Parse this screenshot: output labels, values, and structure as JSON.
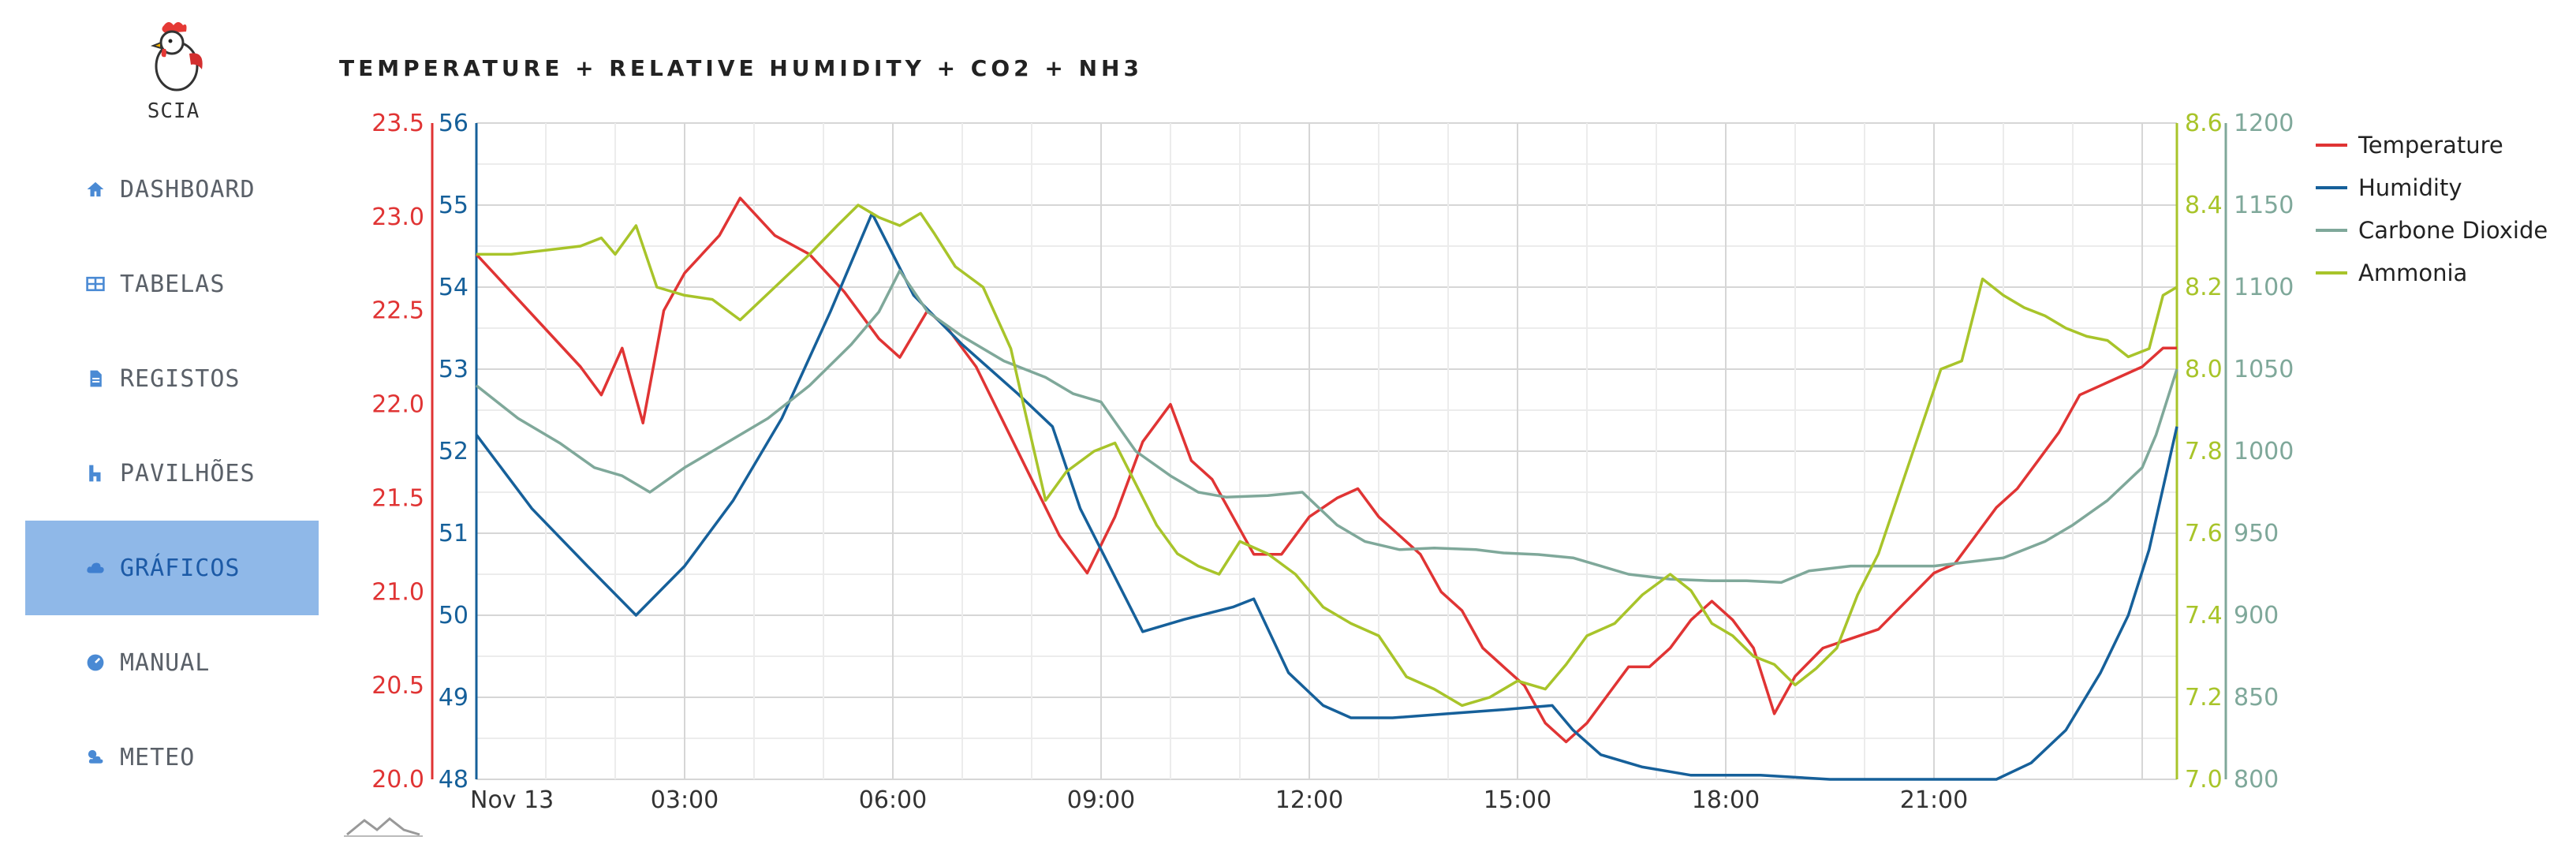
{
  "app": {
    "logo_text": "SCIA"
  },
  "sidebar": {
    "items": [
      {
        "label": "DASHBOARD",
        "icon": "home-icon",
        "active": false
      },
      {
        "label": "TABELAS",
        "icon": "table-icon",
        "active": false
      },
      {
        "label": "REGISTOS",
        "icon": "file-icon",
        "active": false
      },
      {
        "label": "PAVILHÕES",
        "icon": "barn-icon",
        "active": false
      },
      {
        "label": "GRÁFICOS",
        "icon": "cloud-icon",
        "active": true
      },
      {
        "label": "MANUAL",
        "icon": "gauge-icon",
        "active": false
      },
      {
        "label": "METEO",
        "icon": "weather-icon",
        "active": false
      }
    ]
  },
  "chart_data": {
    "type": "line",
    "title": "TEMPERATURE + RELATIVE HUMIDITY + CO2 + NH3",
    "x_ticks": [
      "Nov 13",
      "03:00",
      "06:00",
      "09:00",
      "12:00",
      "15:00",
      "18:00",
      "21:00"
    ],
    "x_range_hours": [
      0,
      24.5
    ],
    "grid": true,
    "legend_position": "right",
    "axes": {
      "temperature": {
        "range": [
          20.0,
          23.5
        ],
        "ticks": [
          "20.0",
          "20.5",
          "21.0",
          "21.5",
          "22.0",
          "22.5",
          "23.0",
          "23.5"
        ],
        "color": "#e03434",
        "side": "left"
      },
      "humidity": {
        "range": [
          48,
          56
        ],
        "ticks": [
          "48",
          "49",
          "50",
          "51",
          "52",
          "53",
          "54",
          "55",
          "56"
        ],
        "color": "#16609a",
        "side": "left"
      },
      "ammonia": {
        "range": [
          7.0,
          8.6
        ],
        "ticks": [
          "7.0",
          "7.2",
          "7.4",
          "7.6",
          "7.8",
          "8.0",
          "8.2",
          "8.4",
          "8.6"
        ],
        "color": "#a8c42a",
        "side": "right"
      },
      "co2": {
        "range": [
          800,
          1200
        ],
        "ticks": [
          "800",
          "850",
          "900",
          "950",
          "1000",
          "1050",
          "1100",
          "1150",
          "1200"
        ],
        "color": "#7fa89a",
        "side": "right"
      }
    },
    "series": [
      {
        "name": "Temperature",
        "axis": "temperature",
        "color": "#e03434",
        "points": [
          [
            0,
            22.8
          ],
          [
            0.5,
            22.6
          ],
          [
            1,
            22.4
          ],
          [
            1.5,
            22.2
          ],
          [
            1.8,
            22.05
          ],
          [
            2.1,
            22.3
          ],
          [
            2.4,
            21.9
          ],
          [
            2.7,
            22.5
          ],
          [
            3,
            22.7
          ],
          [
            3.5,
            22.9
          ],
          [
            3.8,
            23.1
          ],
          [
            4.3,
            22.9
          ],
          [
            4.8,
            22.8
          ],
          [
            5.3,
            22.6
          ],
          [
            5.8,
            22.35
          ],
          [
            6.1,
            22.25
          ],
          [
            6.5,
            22.5
          ],
          [
            6.8,
            22.4
          ],
          [
            7.2,
            22.2
          ],
          [
            7.6,
            21.9
          ],
          [
            8,
            21.6
          ],
          [
            8.4,
            21.3
          ],
          [
            8.8,
            21.1
          ],
          [
            9.2,
            21.4
          ],
          [
            9.6,
            21.8
          ],
          [
            10,
            22.0
          ],
          [
            10.3,
            21.7
          ],
          [
            10.6,
            21.6
          ],
          [
            10.9,
            21.4
          ],
          [
            11.2,
            21.2
          ],
          [
            11.6,
            21.2
          ],
          [
            12,
            21.4
          ],
          [
            12.4,
            21.5
          ],
          [
            12.7,
            21.55
          ],
          [
            13,
            21.4
          ],
          [
            13.3,
            21.3
          ],
          [
            13.6,
            21.2
          ],
          [
            13.9,
            21.0
          ],
          [
            14.2,
            20.9
          ],
          [
            14.5,
            20.7
          ],
          [
            14.8,
            20.6
          ],
          [
            15.1,
            20.5
          ],
          [
            15.4,
            20.3
          ],
          [
            15.7,
            20.2
          ],
          [
            16,
            20.3
          ],
          [
            16.3,
            20.45
          ],
          [
            16.6,
            20.6
          ],
          [
            16.9,
            20.6
          ],
          [
            17.2,
            20.7
          ],
          [
            17.5,
            20.85
          ],
          [
            17.8,
            20.95
          ],
          [
            18.1,
            20.85
          ],
          [
            18.4,
            20.7
          ],
          [
            18.7,
            20.35
          ],
          [
            19,
            20.55
          ],
          [
            19.4,
            20.7
          ],
          [
            19.8,
            20.75
          ],
          [
            20.2,
            20.8
          ],
          [
            20.6,
            20.95
          ],
          [
            21,
            21.1
          ],
          [
            21.3,
            21.15
          ],
          [
            21.6,
            21.3
          ],
          [
            21.9,
            21.45
          ],
          [
            22.2,
            21.55
          ],
          [
            22.5,
            21.7
          ],
          [
            22.8,
            21.85
          ],
          [
            23.1,
            22.05
          ],
          [
            23.4,
            22.1
          ],
          [
            23.7,
            22.15
          ],
          [
            24,
            22.2
          ],
          [
            24.3,
            22.3
          ],
          [
            24.5,
            22.3
          ]
        ]
      },
      {
        "name": "Humidity",
        "axis": "humidity",
        "color": "#16609a",
        "points": [
          [
            0,
            52.2
          ],
          [
            0.8,
            51.3
          ],
          [
            1.6,
            50.6
          ],
          [
            2.3,
            50.0
          ],
          [
            3,
            50.6
          ],
          [
            3.7,
            51.4
          ],
          [
            4.4,
            52.4
          ],
          [
            5.1,
            53.7
          ],
          [
            5.7,
            54.9
          ],
          [
            6.3,
            53.9
          ],
          [
            7,
            53.3
          ],
          [
            7.8,
            52.7
          ],
          [
            8.3,
            52.3
          ],
          [
            8.7,
            51.3
          ],
          [
            9.3,
            50.3
          ],
          [
            9.6,
            49.8
          ],
          [
            10.2,
            49.95
          ],
          [
            10.9,
            50.1
          ],
          [
            11.2,
            50.2
          ],
          [
            11.7,
            49.3
          ],
          [
            12.2,
            48.9
          ],
          [
            12.6,
            48.75
          ],
          [
            13.2,
            48.75
          ],
          [
            14,
            48.8
          ],
          [
            14.8,
            48.85
          ],
          [
            15.5,
            48.9
          ],
          [
            15.8,
            48.6
          ],
          [
            16.2,
            48.3
          ],
          [
            16.8,
            48.15
          ],
          [
            17.5,
            48.05
          ],
          [
            18.5,
            48.05
          ],
          [
            19.5,
            48.0
          ],
          [
            20.5,
            48.0
          ],
          [
            21.5,
            48.0
          ],
          [
            21.9,
            48.0
          ],
          [
            22.4,
            48.2
          ],
          [
            22.9,
            48.6
          ],
          [
            23.4,
            49.3
          ],
          [
            23.8,
            50.0
          ],
          [
            24.1,
            50.8
          ],
          [
            24.5,
            52.3
          ]
        ]
      },
      {
        "name": "Carbone Dioxide",
        "axis": "co2",
        "color": "#7fa89a",
        "points": [
          [
            0,
            1040
          ],
          [
            0.6,
            1020
          ],
          [
            1.2,
            1005
          ],
          [
            1.7,
            990
          ],
          [
            2.1,
            985
          ],
          [
            2.5,
            975
          ],
          [
            3,
            990
          ],
          [
            3.6,
            1005
          ],
          [
            4.2,
            1020
          ],
          [
            4.8,
            1040
          ],
          [
            5.4,
            1065
          ],
          [
            5.8,
            1085
          ],
          [
            6.1,
            1110
          ],
          [
            6.5,
            1085
          ],
          [
            7,
            1070
          ],
          [
            7.6,
            1055
          ],
          [
            8.2,
            1045
          ],
          [
            8.6,
            1035
          ],
          [
            9,
            1030
          ],
          [
            9.5,
            1000
          ],
          [
            10,
            985
          ],
          [
            10.4,
            975
          ],
          [
            10.8,
            972
          ],
          [
            11.4,
            973
          ],
          [
            11.9,
            975
          ],
          [
            12.4,
            955
          ],
          [
            12.8,
            945
          ],
          [
            13.3,
            940
          ],
          [
            13.8,
            941
          ],
          [
            14.4,
            940
          ],
          [
            14.8,
            938
          ],
          [
            15.3,
            937
          ],
          [
            15.8,
            935
          ],
          [
            16.2,
            930
          ],
          [
            16.6,
            925
          ],
          [
            17.2,
            922
          ],
          [
            17.8,
            921
          ],
          [
            18.3,
            921
          ],
          [
            18.8,
            920
          ],
          [
            19.2,
            927
          ],
          [
            19.8,
            930
          ],
          [
            20.4,
            930
          ],
          [
            21,
            930
          ],
          [
            21.6,
            933
          ],
          [
            22,
            935
          ],
          [
            22.6,
            945
          ],
          [
            23,
            955
          ],
          [
            23.5,
            970
          ],
          [
            24,
            990
          ],
          [
            24.2,
            1010
          ],
          [
            24.5,
            1050
          ]
        ]
      },
      {
        "name": "Ammonia",
        "axis": "ammonia",
        "color": "#a8c42a",
        "points": [
          [
            0,
            8.28
          ],
          [
            0.5,
            8.28
          ],
          [
            1,
            8.29
          ],
          [
            1.5,
            8.3
          ],
          [
            1.8,
            8.32
          ],
          [
            2,
            8.28
          ],
          [
            2.3,
            8.35
          ],
          [
            2.6,
            8.2
          ],
          [
            3,
            8.18
          ],
          [
            3.4,
            8.17
          ],
          [
            3.8,
            8.12
          ],
          [
            4.3,
            8.2
          ],
          [
            4.8,
            8.28
          ],
          [
            5.2,
            8.35
          ],
          [
            5.5,
            8.4
          ],
          [
            5.8,
            8.37
          ],
          [
            6.1,
            8.35
          ],
          [
            6.4,
            8.38
          ],
          [
            6.6,
            8.33
          ],
          [
            6.9,
            8.25
          ],
          [
            7.3,
            8.2
          ],
          [
            7.7,
            8.05
          ],
          [
            7.9,
            7.9
          ],
          [
            8.2,
            7.68
          ],
          [
            8.5,
            7.75
          ],
          [
            8.9,
            7.8
          ],
          [
            9.2,
            7.82
          ],
          [
            9.5,
            7.72
          ],
          [
            9.8,
            7.62
          ],
          [
            10.1,
            7.55
          ],
          [
            10.4,
            7.52
          ],
          [
            10.7,
            7.5
          ],
          [
            11,
            7.58
          ],
          [
            11.4,
            7.55
          ],
          [
            11.8,
            7.5
          ],
          [
            12.2,
            7.42
          ],
          [
            12.6,
            7.38
          ],
          [
            13,
            7.35
          ],
          [
            13.4,
            7.25
          ],
          [
            13.8,
            7.22
          ],
          [
            14.2,
            7.18
          ],
          [
            14.6,
            7.2
          ],
          [
            15,
            7.24
          ],
          [
            15.4,
            7.22
          ],
          [
            15.7,
            7.28
          ],
          [
            16,
            7.35
          ],
          [
            16.4,
            7.38
          ],
          [
            16.8,
            7.45
          ],
          [
            17.2,
            7.5
          ],
          [
            17.5,
            7.46
          ],
          [
            17.8,
            7.38
          ],
          [
            18.1,
            7.35
          ],
          [
            18.4,
            7.3
          ],
          [
            18.7,
            7.28
          ],
          [
            19,
            7.23
          ],
          [
            19.3,
            7.27
          ],
          [
            19.6,
            7.32
          ],
          [
            19.9,
            7.45
          ],
          [
            20.2,
            7.55
          ],
          [
            20.5,
            7.7
          ],
          [
            20.8,
            7.85
          ],
          [
            21.1,
            8.0
          ],
          [
            21.4,
            8.02
          ],
          [
            21.7,
            8.22
          ],
          [
            22,
            8.18
          ],
          [
            22.3,
            8.15
          ],
          [
            22.6,
            8.13
          ],
          [
            22.9,
            8.1
          ],
          [
            23.2,
            8.08
          ],
          [
            23.5,
            8.07
          ],
          [
            23.8,
            8.03
          ],
          [
            24.1,
            8.05
          ],
          [
            24.3,
            8.18
          ],
          [
            24.5,
            8.2
          ]
        ]
      }
    ]
  }
}
